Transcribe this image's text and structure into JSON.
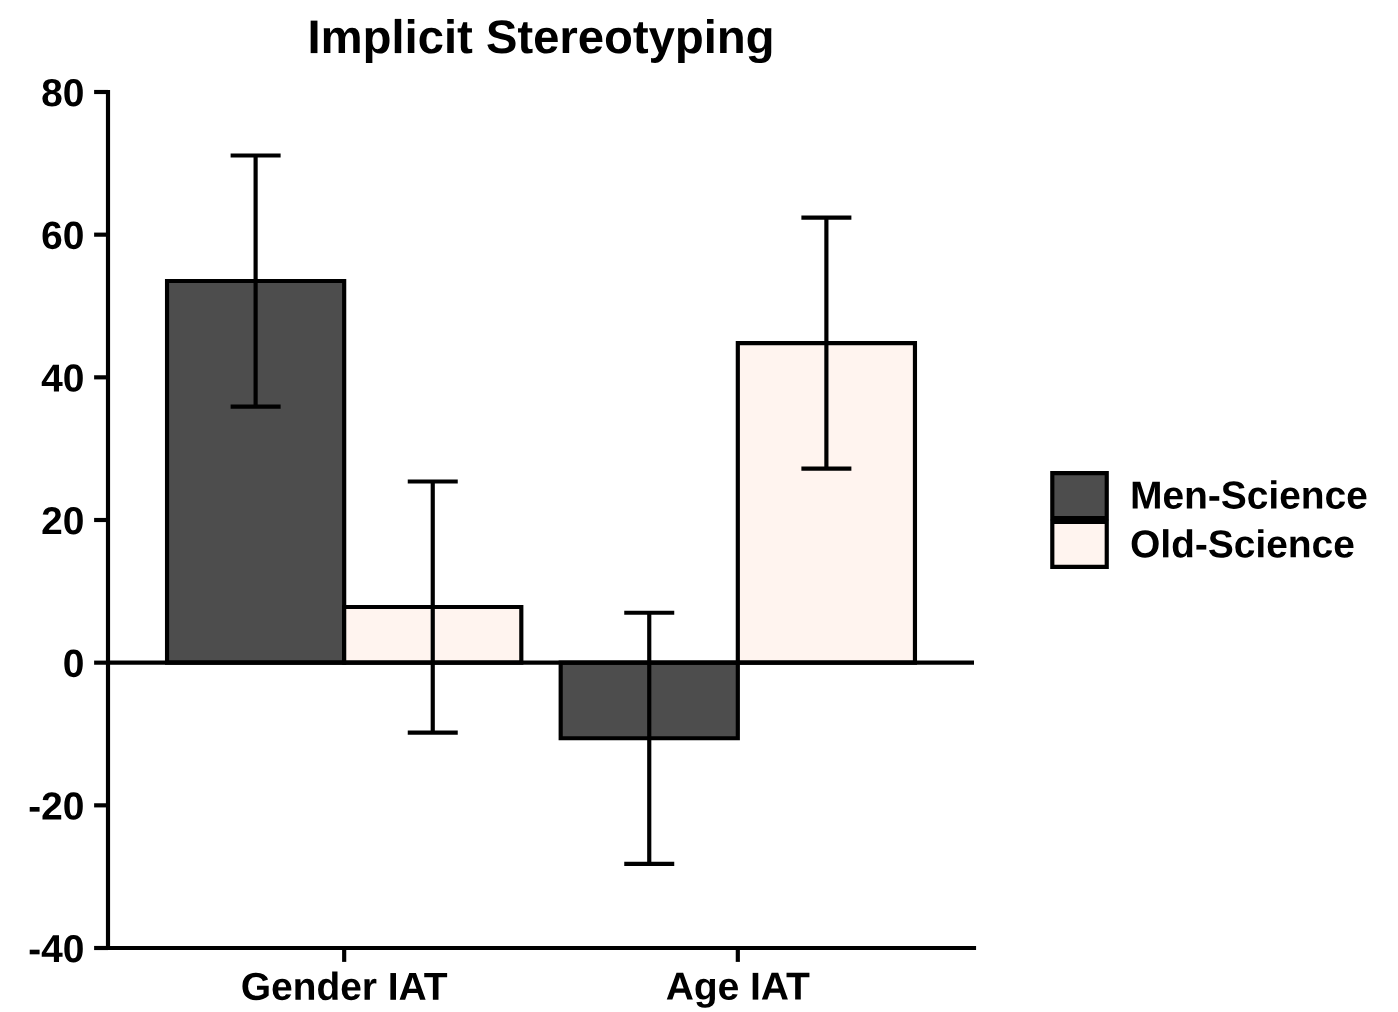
{
  "chart_data": {
    "type": "bar",
    "title": "Implicit Stereotyping",
    "categories": [
      "Gender IAT",
      "Age IAT"
    ],
    "series": [
      {
        "name": "Men-Science",
        "color": "#4d4d4d",
        "values": [
          53.5,
          -10.6
        ],
        "errors": [
          17.6,
          17.6
        ]
      },
      {
        "name": "Old-Science",
        "color": "#fff4ef",
        "values": [
          7.8,
          44.8
        ],
        "errors": [
          17.6,
          17.6
        ]
      }
    ],
    "ylim": [
      -40,
      80
    ],
    "yticks": [
      -40,
      -20,
      0,
      20,
      40,
      60,
      80
    ],
    "ref_lines": [
      {
        "axis": "y",
        "value": 0,
        "color": "#000000"
      }
    ],
    "grid": false,
    "legend": "right"
  }
}
